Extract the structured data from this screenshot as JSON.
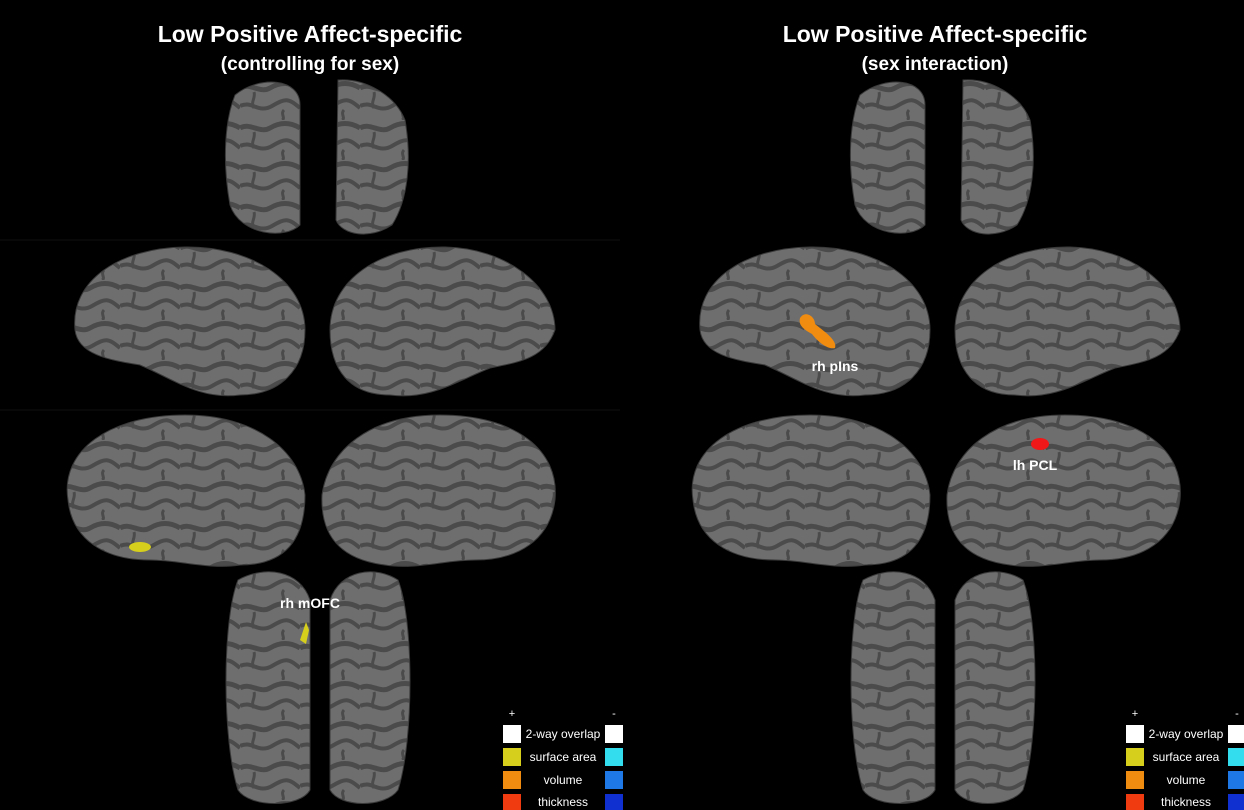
{
  "panels": [
    {
      "title": "Low Positive Affect-specific",
      "subtitle": "(controlling for sex)",
      "annotations": [
        "rh mOFC"
      ],
      "legend": {
        "plus": "+",
        "minus": "-",
        "items": [
          "2-way overlap",
          "surface area",
          "volume",
          "thickness"
        ]
      }
    },
    {
      "title": "Low Positive Affect-specific",
      "subtitle": "(sex interaction)",
      "annotations": [
        "rh pIns",
        "lh PCL"
      ],
      "legend": {
        "plus": "+",
        "minus": "-",
        "items": [
          "2-way overlap",
          "surface area",
          "volume",
          "thickness"
        ]
      }
    }
  ]
}
